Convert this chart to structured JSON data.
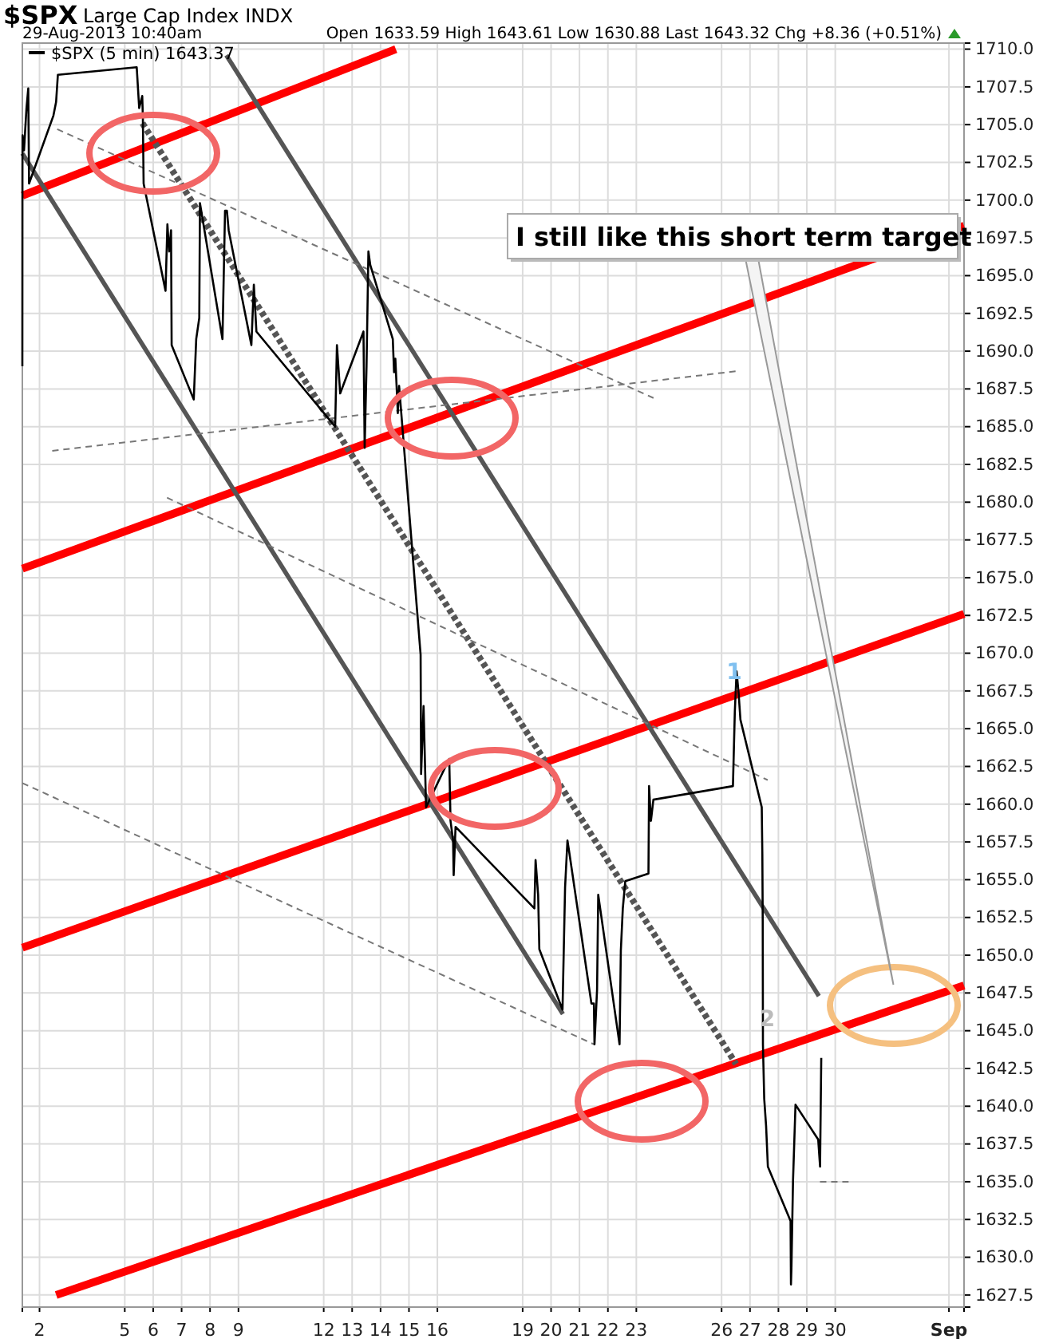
{
  "chart_data": {
    "type": "line",
    "title": "$SPX",
    "subtitle": "Large Cap Index INDX",
    "annotations": [
      "29-Aug-2013 10:40am",
      "Open 1633.59 High 1643.61 Low 1630.88 Last 1643.32 Chg +8.36 (+0.51%)",
      "I still like this short term target",
      {
        "text": "1",
        "x": "2013-08-26T10:40",
        "y": 1668.3
      },
      {
        "text": "2",
        "x": "2013-08-27T14:35",
        "y": 1645.3
      }
    ],
    "legend": "top left",
    "grid": true,
    "xlim": [
      "2013-08-01T09:30",
      "2013-09-03T12:45"
    ],
    "ylim": [
      1626.7,
      1710.4
    ],
    "xticks": [
      {
        "value": "2013-08-02",
        "label": "2"
      },
      {
        "value": "2013-08-05",
        "label": "5"
      },
      {
        "value": "2013-08-06",
        "label": "6"
      },
      {
        "value": "2013-08-07",
        "label": "7"
      },
      {
        "value": "2013-08-08",
        "label": "8"
      },
      {
        "value": "2013-08-09",
        "label": "9"
      },
      {
        "value": "2013-08-12",
        "label": "12"
      },
      {
        "value": "2013-08-13",
        "label": "13"
      },
      {
        "value": "2013-08-14",
        "label": "14"
      },
      {
        "value": "2013-08-15",
        "label": "15"
      },
      {
        "value": "2013-08-16",
        "label": "16"
      },
      {
        "value": "2013-08-19",
        "label": "19"
      },
      {
        "value": "2013-08-20",
        "label": "20"
      },
      {
        "value": "2013-08-21",
        "label": "21"
      },
      {
        "value": "2013-08-22",
        "label": "22"
      },
      {
        "value": "2013-08-23",
        "label": "23"
      },
      {
        "value": "2013-08-26",
        "label": "26"
      },
      {
        "value": "2013-08-27",
        "label": "27"
      },
      {
        "value": "2013-08-28",
        "label": "28"
      },
      {
        "value": "2013-08-29",
        "label": "29"
      },
      {
        "value": "2013-08-30",
        "label": "30"
      },
      {
        "value": "2013-09-03",
        "label": "Sep"
      }
    ],
    "yticks": [
      {
        "value": 1627.5,
        "label": "1627.5"
      },
      {
        "value": 1630,
        "label": "1630.0"
      },
      {
        "value": 1632.5,
        "label": "1632.5"
      },
      {
        "value": 1635,
        "label": "1635.0"
      },
      {
        "value": 1637.5,
        "label": "1637.5"
      },
      {
        "value": 1640,
        "label": "1640.0"
      },
      {
        "value": 1642.5,
        "label": "1642.5"
      },
      {
        "value": 1645,
        "label": "1645.0"
      },
      {
        "value": 1647.5,
        "label": "1647.5"
      },
      {
        "value": 1650,
        "label": "1650.0"
      },
      {
        "value": 1652.5,
        "label": "1652.5"
      },
      {
        "value": 1655,
        "label": "1655.0"
      },
      {
        "value": 1657.5,
        "label": "1657.5"
      },
      {
        "value": 1660,
        "label": "1660.0"
      },
      {
        "value": 1662.5,
        "label": "1662.5"
      },
      {
        "value": 1665,
        "label": "1665.0"
      },
      {
        "value": 1667.5,
        "label": "1667.5"
      },
      {
        "value": 1670,
        "label": "1670.0"
      },
      {
        "value": 1672.5,
        "label": "1672.5"
      },
      {
        "value": 1675,
        "label": "1675.0"
      },
      {
        "value": 1677.5,
        "label": "1677.5"
      },
      {
        "value": 1680,
        "label": "1680.0"
      },
      {
        "value": 1682.5,
        "label": "1682.5"
      },
      {
        "value": 1685,
        "label": "1685.0"
      },
      {
        "value": 1687.5,
        "label": "1687.5"
      },
      {
        "value": 1690,
        "label": "1690.0"
      },
      {
        "value": 1692.5,
        "label": "1692.5"
      },
      {
        "value": 1695,
        "label": "1695.0"
      },
      {
        "value": 1697.5,
        "label": "1697.5"
      },
      {
        "value": 1700,
        "label": "1700.0"
      },
      {
        "value": 1702.5,
        "label": "1702.5"
      },
      {
        "value": 1705,
        "label": "1705.0"
      },
      {
        "value": 1707.5,
        "label": "1707.5"
      },
      {
        "value": 1710,
        "label": "1710.0"
      }
    ],
    "series": [
      {
        "name": "$SPX (5 min) 1643.37",
        "color": "#000000",
        "x": [
          "2013-08-01T09:30",
          "2013-08-01T09:35",
          "2013-08-01T09:40",
          "2013-08-01T10:55",
          "2013-08-01T13:00",
          "2013-08-01T14:30",
          "2013-08-01T15:10",
          "2013-08-02T11:45",
          "2013-08-02T14:00",
          "2013-08-02T15:30",
          "2013-08-05T10:05",
          "2013-08-05T12:10",
          "2013-08-05T14:45",
          "2013-08-05T15:15",
          "2013-08-05T15:55",
          "2013-08-06T10:25",
          "2013-08-06T12:00",
          "2013-08-06T13:30",
          "2013-08-06T15:05",
          "2013-08-06T15:35",
          "2013-08-07T10:15",
          "2013-08-07T12:20",
          "2013-08-07T14:55",
          "2013-08-07T15:30",
          "2013-08-08T10:30",
          "2013-08-08T12:40",
          "2013-08-08T14:15",
          "2013-08-08T15:45",
          "2013-08-09T10:55",
          "2013-08-09T13:00",
          "2013-08-09T15:10",
          "2013-08-12T09:40",
          "2013-08-12T11:10",
          "2013-08-12T13:55",
          "2013-08-13T09:35",
          "2013-08-13T10:35",
          "2013-08-13T12:10",
          "2013-08-13T13:45",
          "2013-08-13T15:20",
          "2013-08-14T10:20",
          "2013-08-14T11:25",
          "2013-08-14T12:30",
          "2013-08-14T14:35",
          "2013-08-14T15:40",
          "2013-08-15T09:50",
          "2013-08-15T10:15",
          "2013-08-15T12:20",
          "2013-08-15T14:25",
          "2013-08-16T10:00",
          "2013-08-16T11:05",
          "2013-08-16T13:15",
          "2013-08-16T13:45",
          "2013-08-16T15:20",
          "2013-08-19T09:55",
          "2013-08-19T10:55",
          "2013-08-19T13:05",
          "2013-08-19T14:05",
          "2013-08-20T09:40",
          "2013-08-20T11:50",
          "2013-08-20T13:50",
          "2013-08-20T15:35",
          "2013-08-21T10:05",
          "2013-08-21T12:10",
          "2013-08-21T12:40",
          "2013-08-21T14:50",
          "2013-08-21T15:50",
          "2013-08-22T09:50",
          "2013-08-22T10:55",
          "2013-08-22T12:35",
          "2013-08-22T14:40",
          "2013-08-23T10:15",
          "2013-08-23T10:45",
          "2013-08-23T12:20",
          "2013-08-23T14:25",
          "2013-08-26T09:35",
          "2013-08-26T11:10",
          "2013-08-26T12:40",
          "2013-08-26T14:20",
          "2013-08-26T15:55",
          "2013-08-27T09:55",
          "2013-08-27T10:25",
          "2013-08-27T10:45",
          "2013-08-27T10:55",
          "2013-08-27T12:00",
          "2013-08-27T13:35",
          "2013-08-27T15:05",
          "2013-08-28T10:15",
          "2013-08-28T10:35",
          "2013-08-28T11:00",
          "2013-08-28T12:20",
          "2013-08-28T14:25",
          "2013-08-29T09:35",
          "2013-08-29T11:10",
          "2013-08-29T11:40",
          "2013-08-29T12:10"
        ],
        "values": [
          1689,
          1702,
          1704.3,
          1703.3,
          1706.1,
          1707.4,
          1701.1,
          1705.6,
          1706.5,
          1708.3,
          1708.8,
          1706.1,
          1706.9,
          1705.6,
          1701.1,
          1694.0,
          1698.4,
          1696.6,
          1698.0,
          1690.4,
          1686.8,
          1690.8,
          1692.2,
          1699.8,
          1690.8,
          1699.3,
          1699.3,
          1698.0,
          1690.4,
          1694.4,
          1691.3,
          1685.0,
          1690.4,
          1687.2,
          1691.3,
          1683.6,
          1689.0,
          1696.6,
          1695.7,
          1690.8,
          1688.6,
          1689.5,
          1685.9,
          1687.7,
          1669.9,
          1662.0,
          1666.5,
          1659.8,
          1663.0,
          1658.9,
          1657.6,
          1655.3,
          1658.5,
          1653.1,
          1656.3,
          1654.0,
          1650.4,
          1646.4,
          1654.5,
          1657.6,
          1656.7,
          1646.8,
          1646.8,
          1644.1,
          1647.7,
          1654.0,
          1644.1,
          1650.3,
          1653.1,
          1654.9,
          1655.4,
          1661.2,
          1658.9,
          1660.3,
          1661.2,
          1666.1,
          1668.8,
          1667.4,
          1665.6,
          1659.8,
          1656.7,
          1652.2,
          1644.1,
          1640.5,
          1638.7,
          1636.0,
          1632.4,
          1628.2,
          1629.3,
          1635.1,
          1640.1,
          1637.8,
          1636.0,
          1639.6,
          1643.2
        ]
      },
      {
        "type": "line",
        "color": "#ff0000",
        "line_style": "solid",
        "x": [
          "2013-08-01T09:30",
          "2013-08-14T12:55"
        ],
        "values": [
          1700.3,
          1710
        ]
      },
      {
        "type": "line",
        "color": "#ff0000",
        "line_style": "solid",
        "x": [
          "2013-08-01T09:30",
          "2013-09-03T12:45"
        ],
        "values": [
          1675.6,
          1698.3
        ]
      },
      {
        "type": "line",
        "color": "#ff0000",
        "line_style": "solid",
        "x": [
          "2013-08-01T09:30",
          "2013-09-03T12:45"
        ],
        "values": [
          1650.5,
          1672.6
        ]
      },
      {
        "type": "line",
        "color": "#ff0000",
        "line_style": "solid",
        "x": [
          "2013-08-02T14:05",
          "2013-09-03T12:45"
        ],
        "values": [
          1627.5,
          1648.0
        ]
      },
      {
        "type": "line",
        "color": "#555555",
        "line_style": "solid",
        "x": [
          "2013-08-01T09:30",
          "2013-08-20T10:00"
        ],
        "values": [
          1703.1,
          1646.1
        ]
      },
      {
        "type": "line",
        "color": "#555555",
        "line_style": "solid",
        "x": [
          "2013-08-08T13:45",
          "2013-08-29T10:10"
        ],
        "values": [
          1709.6,
          1647.3
        ]
      },
      {
        "type": "line",
        "color": "#555555",
        "line_style": "dotted",
        "x": [
          "2013-08-05T14:55",
          "2013-08-26T12:10"
        ],
        "values": [
          1705.1,
          1642.8
        ]
      },
      {
        "type": "line",
        "color": "#777777",
        "line_style": "dashed",
        "x": [
          "2013-08-02T14:55",
          "2013-08-23T14:30"
        ],
        "values": [
          1704.7,
          1686.9
        ]
      },
      {
        "type": "line",
        "color": "#777777",
        "line_style": "dashed",
        "x": [
          "2013-08-02T10:45",
          "2013-08-26T15:20"
        ],
        "values": [
          1683.4,
          1688.7
        ]
      },
      {
        "type": "line",
        "color": "#777777",
        "line_style": "dashed",
        "x": [
          "2013-08-06T11:40",
          "2013-08-27T14:55"
        ],
        "values": [
          1680.3,
          1661.6
        ]
      },
      {
        "type": "line",
        "color": "#777777",
        "line_style": "dashed",
        "x": [
          "2013-08-01T09:30",
          "2013-08-21T12:10"
        ],
        "values": [
          1661.4,
          1644.1
        ]
      },
      {
        "type": "line",
        "color": "#777777",
        "line_style": "dashed",
        "x": [
          "2013-08-29T11:05",
          "2013-08-30T11:15"
        ],
        "values": [
          1635,
          1635
        ]
      }
    ]
  }
}
